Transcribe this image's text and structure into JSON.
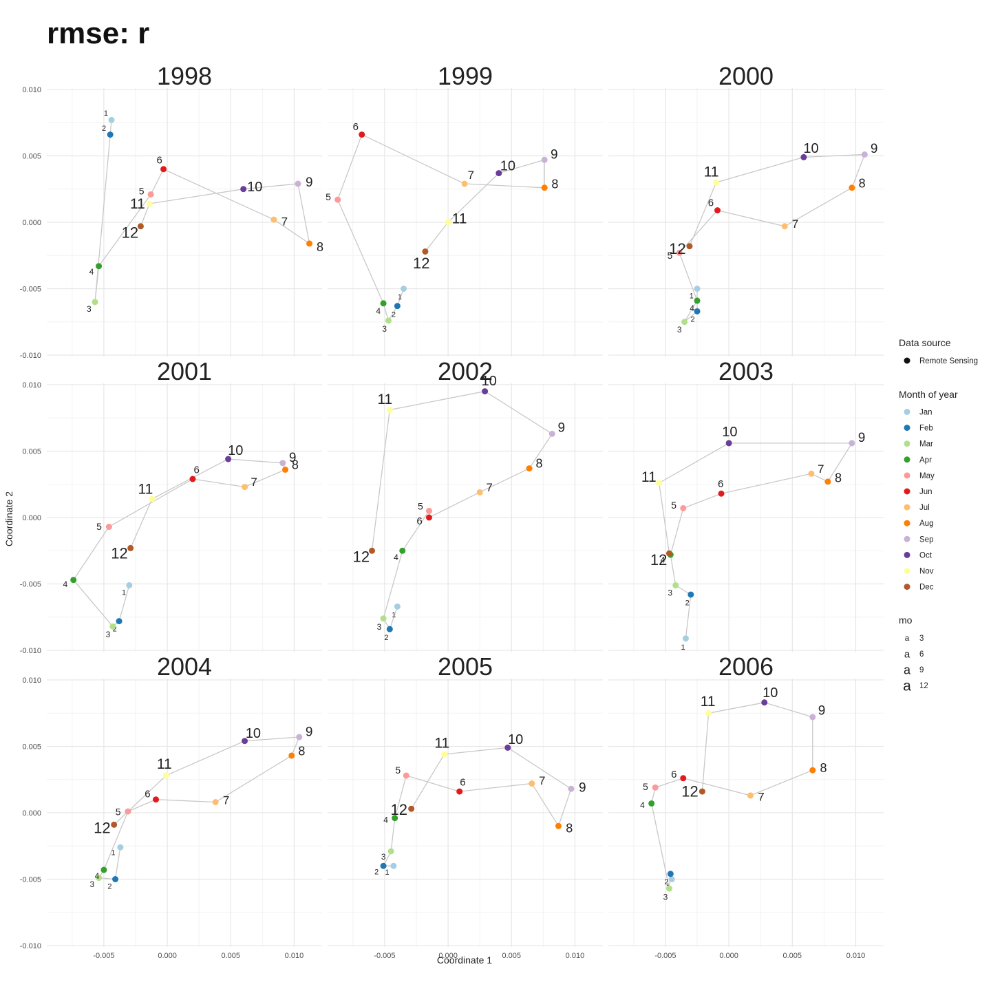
{
  "title": "rmse: r",
  "chart_data": {
    "type": "scatter",
    "title": "rmse: r",
    "xlabel": "Coordinate 1",
    "ylabel": "Coordinate 2",
    "xlim": [
      -0.0095,
      0.0122
    ],
    "ylim": [
      -0.0101,
      0.0101
    ],
    "x_ticks": [
      -0.005,
      0.0,
      0.005,
      0.01
    ],
    "x_tick_labels": [
      "-0.005",
      "0.000",
      "0.005",
      "0.010"
    ],
    "y_ticks": [
      -0.01,
      -0.005,
      0.0,
      0.005,
      0.01
    ],
    "y_tick_labels": [
      "-0.010",
      "-0.005",
      "0.000",
      "0.005",
      "0.010"
    ],
    "grid": true,
    "legend_position": "right",
    "month_colors": [
      "#A6CEE3",
      "#1F78B4",
      "#B2DF8A",
      "#33A02C",
      "#FB9A99",
      "#E31A1C",
      "#FDBF6F",
      "#FF7F00",
      "#CAB2D6",
      "#6A3D9A",
      "#FFFF99",
      "#B15928"
    ],
    "legends": {
      "source": {
        "title": "Data source",
        "items": [
          "Remote Sensing"
        ]
      },
      "month": {
        "title": "Month of year",
        "items": [
          "Jan",
          "Feb",
          "Mar",
          "Apr",
          "May",
          "Jun",
          "Jul",
          "Aug",
          "Sep",
          "Oct",
          "Nov",
          "Dec"
        ]
      },
      "mo": {
        "title": "mo",
        "glyph": "a",
        "items": [
          "3",
          "6",
          "9",
          "12"
        ]
      }
    },
    "panels": [
      {
        "year": "1998",
        "points": [
          [
            -0.0044,
            0.0077
          ],
          [
            -0.0045,
            0.0066
          ],
          [
            -0.0057,
            -0.006
          ],
          [
            -0.0054,
            -0.0033
          ],
          [
            -0.0013,
            0.0021
          ],
          [
            -0.0003,
            0.004
          ],
          [
            0.0084,
            0.0002
          ],
          [
            0.0112,
            -0.0016
          ],
          [
            0.0103,
            0.0029
          ],
          [
            0.006,
            0.0025
          ],
          [
            -0.0014,
            0.0014
          ],
          [
            -0.0021,
            -0.0003
          ]
        ]
      },
      {
        "year": "1999",
        "points": [
          [
            -0.0035,
            -0.005
          ],
          [
            -0.004,
            -0.0063
          ],
          [
            -0.0047,
            -0.0074
          ],
          [
            -0.0051,
            -0.0061
          ],
          [
            -0.0087,
            0.0017
          ],
          [
            -0.0068,
            0.0066
          ],
          [
            0.0013,
            0.0029
          ],
          [
            0.0076,
            0.0026
          ],
          [
            0.0076,
            0.0047
          ],
          [
            0.004,
            0.0037
          ],
          [
            0.0,
            0.0
          ],
          [
            -0.0018,
            -0.0022
          ]
        ]
      },
      {
        "year": "2000",
        "points": [
          [
            -0.0025,
            -0.005
          ],
          [
            -0.0025,
            -0.0067
          ],
          [
            -0.0035,
            -0.0075
          ],
          [
            -0.0025,
            -0.0059
          ],
          [
            -0.0039,
            -0.0023
          ],
          [
            -0.0009,
            0.0009
          ],
          [
            0.0044,
            -0.0003
          ],
          [
            0.0097,
            0.0026
          ],
          [
            0.0107,
            0.0051
          ],
          [
            0.0059,
            0.0049
          ],
          [
            -0.001,
            0.003
          ],
          [
            -0.0031,
            -0.0018
          ]
        ]
      },
      {
        "year": "2001",
        "points": [
          [
            -0.003,
            -0.0051
          ],
          [
            -0.0038,
            -0.0078
          ],
          [
            -0.0043,
            -0.0082
          ],
          [
            -0.0074,
            -0.0047
          ],
          [
            -0.0046,
            -0.0007
          ],
          [
            0.002,
            0.0029
          ],
          [
            0.0061,
            0.0023
          ],
          [
            0.0093,
            0.0036
          ],
          [
            0.0091,
            0.0041
          ],
          [
            0.0048,
            0.0044
          ],
          [
            -0.0012,
            0.0014
          ],
          [
            -0.0029,
            -0.0023
          ]
        ]
      },
      {
        "year": "2002",
        "points": [
          [
            -0.004,
            -0.0067
          ],
          [
            -0.0046,
            -0.0084
          ],
          [
            -0.0051,
            -0.0076
          ],
          [
            -0.0036,
            -0.0025
          ],
          [
            -0.0015,
            0.0005
          ],
          [
            -0.0015,
            0.0
          ],
          [
            0.0025,
            0.0019
          ],
          [
            0.0064,
            0.0037
          ],
          [
            0.0082,
            0.0063
          ],
          [
            0.0029,
            0.0095
          ],
          [
            -0.0046,
            0.0081
          ],
          [
            -0.006,
            -0.0025
          ]
        ]
      },
      {
        "year": "2003",
        "points": [
          [
            -0.0034,
            -0.0091
          ],
          [
            -0.003,
            -0.0058
          ],
          [
            -0.0042,
            -0.0051
          ],
          [
            -0.0046,
            -0.0028
          ],
          [
            -0.0036,
            0.0007
          ],
          [
            -0.0006,
            0.0018
          ],
          [
            0.0065,
            0.0033
          ],
          [
            0.0078,
            0.0027
          ],
          [
            0.0097,
            0.0056
          ],
          [
            0.0,
            0.0056
          ],
          [
            -0.0055,
            0.0026
          ],
          [
            -0.0047,
            -0.0027
          ]
        ]
      },
      {
        "year": "2004",
        "points": [
          [
            -0.0037,
            -0.0026
          ],
          [
            -0.0041,
            -0.005
          ],
          [
            -0.0054,
            -0.0049
          ],
          [
            -0.005,
            -0.0043
          ],
          [
            -0.0031,
            0.0001
          ],
          [
            -0.0009,
            0.001
          ],
          [
            0.0038,
            0.0008
          ],
          [
            0.0098,
            0.0043
          ],
          [
            0.0104,
            0.0057
          ],
          [
            0.0061,
            0.0054
          ],
          [
            -0.0001,
            0.0028
          ],
          [
            -0.0042,
            -0.0009
          ]
        ]
      },
      {
        "year": "2005",
        "points": [
          [
            -0.0043,
            -0.004
          ],
          [
            -0.0051,
            -0.004
          ],
          [
            -0.0045,
            -0.0029
          ],
          [
            -0.0042,
            -0.0004
          ],
          [
            -0.0033,
            0.0028
          ],
          [
            0.0009,
            0.0016
          ],
          [
            0.0066,
            0.0022
          ],
          [
            0.0087,
            -0.001
          ],
          [
            0.0097,
            0.0018
          ],
          [
            0.0047,
            0.0049
          ],
          [
            -0.0003,
            0.0044
          ],
          [
            -0.0029,
            0.0003
          ]
        ]
      },
      {
        "year": "2006",
        "points": [
          [
            -0.0045,
            -0.005
          ],
          [
            -0.0046,
            -0.0046
          ],
          [
            -0.0047,
            -0.0057
          ],
          [
            -0.0061,
            0.0007
          ],
          [
            -0.0058,
            0.0019
          ],
          [
            -0.0036,
            0.0026
          ],
          [
            0.0017,
            0.0013
          ],
          [
            0.0066,
            0.0032
          ],
          [
            0.0066,
            0.0072
          ],
          [
            0.0028,
            0.0083
          ],
          [
            -0.0016,
            0.0075
          ],
          [
            -0.0021,
            0.0016
          ]
        ]
      }
    ]
  }
}
